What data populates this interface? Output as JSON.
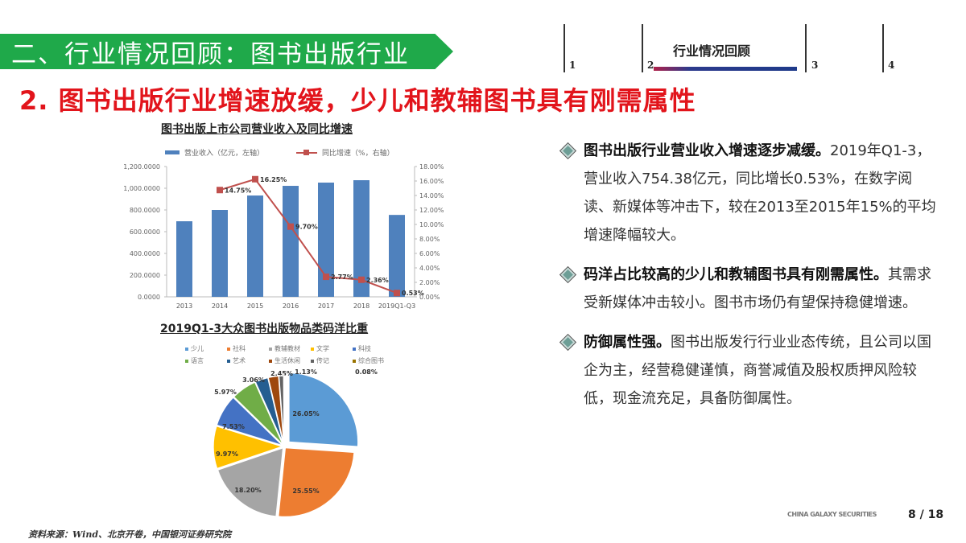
{
  "section_banner": {
    "title": "二、行业情况回顾：图书出版行业",
    "color": "#1fa94a"
  },
  "nav": {
    "items": [
      {
        "num": "1",
        "label": ""
      },
      {
        "num": "2",
        "label": "行业情况回顾",
        "active": true
      },
      {
        "num": "3",
        "label": ""
      },
      {
        "num": "4",
        "label": ""
      }
    ]
  },
  "headline": "2. 图书出版行业增速放缓，少儿和教辅图书具有刚需属性",
  "chart_data": [
    {
      "type": "bar",
      "title": "图书出版上市公司营业收入及同比增速",
      "categories": [
        "2013",
        "2014",
        "2015",
        "2016",
        "2017",
        "2018",
        "2019Q1-Q3"
      ],
      "series": [
        {
          "name": "营业收入（亿元，左轴）",
          "type": "bar",
          "axis": "left",
          "color": "#4f81bd",
          "values": [
            696,
            800,
            933,
            1022,
            1052,
            1074,
            754.38
          ]
        },
        {
          "name": "同比增速（%，右轴）",
          "type": "line",
          "axis": "right",
          "color": "#c0504d",
          "values": [
            null,
            14.75,
            16.25,
            9.7,
            2.77,
            2.36,
            0.53
          ],
          "labels": [
            "",
            "14.75%",
            "16.25%",
            "9.70%",
            "2.77%",
            "2.36%",
            "0.53%"
          ]
        }
      ],
      "ylim_left": [
        0,
        1200
      ],
      "yticks_left": [
        "0.0000",
        "200.0000",
        "400.0000",
        "600.0000",
        "800.0000",
        "1,000.0000",
        "1,200.0000"
      ],
      "ylim_right": [
        0,
        18
      ],
      "yticks_right": [
        "0.00%",
        "2.00%",
        "4.00%",
        "6.00%",
        "8.00%",
        "10.00%",
        "12.00%",
        "14.00%",
        "16.00%",
        "18.00%"
      ],
      "legend_position": "top",
      "grid": false
    },
    {
      "type": "pie",
      "title": "2019Q1-3大众图书出版物品类码洋比重",
      "categories": [
        "少儿",
        "社科",
        "教辅教材",
        "文学",
        "科技",
        "语言",
        "艺术",
        "生活休闲",
        "传记",
        "综合图书"
      ],
      "values": [
        26.05,
        25.55,
        18.2,
        9.97,
        7.53,
        5.97,
        3.06,
        2.45,
        1.13,
        0.08
      ],
      "labels": [
        "26.05%",
        "25.55%",
        "18.20%",
        "9.97%",
        "7.53%",
        "5.97%",
        "3.06%",
        "2.45%",
        "1.13%",
        "0.08%"
      ],
      "colors": [
        "#5b9bd5",
        "#ed7d31",
        "#a5a5a5",
        "#ffc000",
        "#4472c4",
        "#70ad47",
        "#255e91",
        "#9e480e",
        "#636363",
        "#997300"
      ],
      "legend_position": "top"
    }
  ],
  "bullets": [
    {
      "bold": "图书出版行业营业收入增速逐步减缓。",
      "text": "2019年Q1-3，营业收入754.38亿元，同比增长0.53%，在数字阅读、新媒体等冲击下，较在2013至2015年15%的平均增速降幅较大。"
    },
    {
      "bold": "码洋占比较高的少儿和教辅图书具有刚需属性。",
      "text": "其需求受新媒体冲击较小。图书市场仍有望保持稳健增速。"
    },
    {
      "bold": "防御属性强。",
      "text": "图书出版发行行业业态传统，且公司以国企为主，经营稳健谨慎，商誉减值及股权质押风险较低，现金流充足，具备防御属性。"
    }
  ],
  "source": "资料来源：Wind、北京开卷，中国银河证券研究院",
  "footer": {
    "brand": "CHINA GALAXY SECURITIES",
    "page": "8 / 18"
  }
}
